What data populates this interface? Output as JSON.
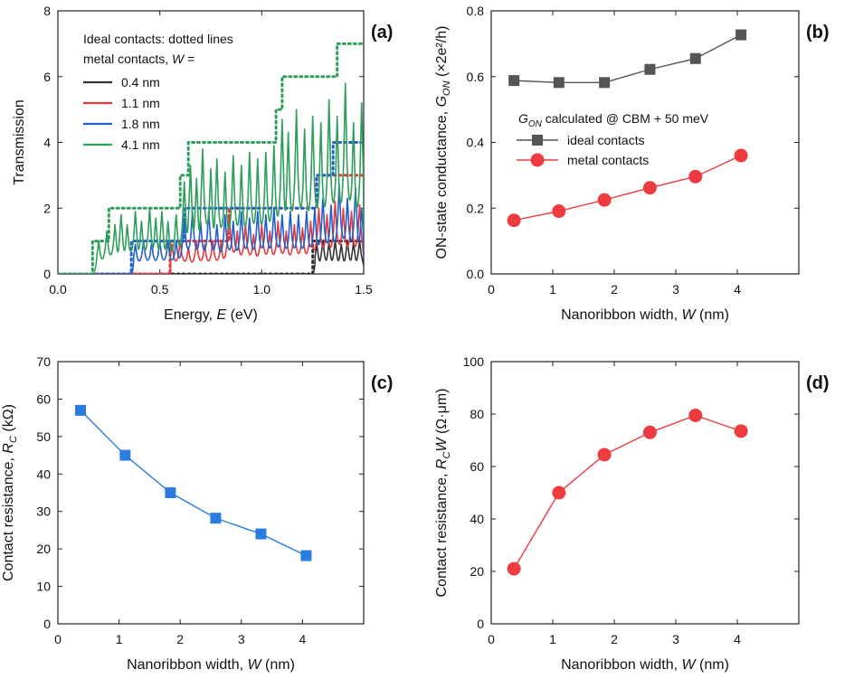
{
  "chart_data": [
    {
      "id": "a",
      "type": "line",
      "panel_label": "(a)",
      "xlabel": "Energy,",
      "xlabel_var": "E",
      "xlabel_unit": "(eV)",
      "ylabel": "Transmission",
      "xlim": [
        0.0,
        1.5
      ],
      "ylim": [
        0,
        8
      ],
      "xticks": [
        0.0,
        0.5,
        1.0,
        1.5
      ],
      "xtick_labels": [
        "0.0",
        "0.5",
        "1.0",
        "1.5"
      ],
      "yticks": [
        0,
        2,
        4,
        6,
        8
      ],
      "ytick_labels": [
        "0",
        "2",
        "4",
        "6",
        "8"
      ],
      "legend_title_1": "Ideal contacts: dotted lines",
      "legend_title_2": "metal contacts,",
      "legend_title_var": "W",
      "legend_title_eq": "=",
      "series": [
        {
          "name": "0.4 nm",
          "color": "#333333",
          "ideal_steps": [
            [
              1.25,
              1
            ]
          ],
          "peaks": [
            [
              1.27,
              0.9
            ],
            [
              1.3,
              1.0
            ],
            [
              1.33,
              0.95
            ],
            [
              1.36,
              1.0
            ],
            [
              1.39,
              0.9
            ],
            [
              1.42,
              1.0
            ],
            [
              1.45,
              0.95
            ],
            [
              1.48,
              1.0
            ]
          ]
        },
        {
          "name": "1.1 nm",
          "color": "#e8383d",
          "ideal_steps": [
            [
              0.55,
              1
            ],
            [
              0.84,
              2
            ],
            [
              1.27,
              3
            ]
          ],
          "peaks": [
            [
              0.56,
              0.9
            ],
            [
              0.6,
              1.0
            ],
            [
              0.64,
              0.8
            ],
            [
              0.68,
              1.0
            ],
            [
              0.72,
              0.9
            ],
            [
              0.76,
              1.0
            ],
            [
              0.8,
              0.95
            ],
            [
              0.84,
              1.8
            ],
            [
              0.88,
              1.3
            ],
            [
              0.92,
              1.5
            ],
            [
              0.96,
              1.2
            ],
            [
              1.0,
              1.5
            ],
            [
              1.04,
              1.3
            ],
            [
              1.08,
              1.6
            ],
            [
              1.12,
              1.3
            ],
            [
              1.16,
              1.5
            ],
            [
              1.2,
              1.4
            ],
            [
              1.24,
              1.6
            ],
            [
              1.28,
              2.0
            ],
            [
              1.32,
              1.8
            ],
            [
              1.36,
              2.2
            ],
            [
              1.4,
              2.0
            ],
            [
              1.44,
              1.9
            ],
            [
              1.48,
              2.1
            ]
          ]
        },
        {
          "name": "1.8 nm",
          "color": "#1f5fcf",
          "ideal_steps": [
            [
              0.36,
              1
            ],
            [
              0.62,
              2
            ],
            [
              1.27,
              3
            ],
            [
              1.35,
              4
            ]
          ],
          "peaks": [
            [
              0.38,
              0.9
            ],
            [
              0.42,
              1.0
            ],
            [
              0.46,
              0.95
            ],
            [
              0.5,
              1.0
            ],
            [
              0.54,
              1.0
            ],
            [
              0.58,
              1.0
            ],
            [
              0.62,
              1.7
            ],
            [
              0.66,
              1.9
            ],
            [
              0.7,
              1.6
            ],
            [
              0.74,
              1.9
            ],
            [
              0.78,
              1.5
            ],
            [
              0.82,
              1.8
            ],
            [
              0.86,
              1.6
            ],
            [
              0.9,
              1.9
            ],
            [
              0.94,
              1.7
            ],
            [
              0.98,
              1.9
            ],
            [
              1.02,
              1.8
            ],
            [
              1.06,
              2.0
            ],
            [
              1.1,
              1.8
            ],
            [
              1.14,
              1.9
            ],
            [
              1.18,
              1.8
            ],
            [
              1.22,
              1.9
            ],
            [
              1.26,
              2.0
            ],
            [
              1.3,
              2.3
            ],
            [
              1.34,
              2.1
            ],
            [
              1.38,
              2.7
            ],
            [
              1.42,
              2.3
            ],
            [
              1.46,
              2.6
            ],
            [
              1.49,
              2.0
            ]
          ]
        },
        {
          "name": "4.1 nm",
          "color": "#2e9e5b",
          "ideal_steps": [
            [
              0.17,
              1
            ],
            [
              0.25,
              2
            ],
            [
              0.6,
              3
            ],
            [
              0.64,
              4
            ],
            [
              1.07,
              5
            ],
            [
              1.1,
              6
            ],
            [
              1.37,
              7
            ]
          ],
          "peaks": [
            [
              0.2,
              1.0
            ],
            [
              0.24,
              1.3
            ],
            [
              0.28,
              1.5
            ],
            [
              0.31,
              1.8
            ],
            [
              0.34,
              1.5
            ],
            [
              0.38,
              1.9
            ],
            [
              0.41,
              1.6
            ],
            [
              0.45,
              2.0
            ],
            [
              0.48,
              1.7
            ],
            [
              0.51,
              1.9
            ],
            [
              0.54,
              1.6
            ],
            [
              0.58,
              1.8
            ],
            [
              0.62,
              2.8
            ],
            [
              0.65,
              3.3
            ],
            [
              0.68,
              2.9
            ],
            [
              0.71,
              3.8
            ],
            [
              0.75,
              3.2
            ],
            [
              0.78,
              3.5
            ],
            [
              0.82,
              3.1
            ],
            [
              0.86,
              3.6
            ],
            [
              0.9,
              3.3
            ],
            [
              0.94,
              3.7
            ],
            [
              0.98,
              3.5
            ],
            [
              1.02,
              3.7
            ],
            [
              1.06,
              3.9
            ],
            [
              1.1,
              4.7
            ],
            [
              1.13,
              4.3
            ],
            [
              1.17,
              5.0
            ],
            [
              1.21,
              4.4
            ],
            [
              1.25,
              4.8
            ],
            [
              1.29,
              4.6
            ],
            [
              1.33,
              5.3
            ],
            [
              1.37,
              4.8
            ],
            [
              1.41,
              5.8
            ],
            [
              1.45,
              4.6
            ],
            [
              1.49,
              5.2
            ]
          ]
        }
      ]
    },
    {
      "id": "b",
      "type": "line",
      "panel_label": "(b)",
      "xlabel": "Nanoribbon width,",
      "xlabel_var": "W",
      "xlabel_unit": "(nm)",
      "ylabel": "ON-state conductance,",
      "ylabel_var": "G",
      "ylabel_sub": "ON",
      "ylabel_unit": "(×2e²/h)",
      "xlim": [
        0,
        5
      ],
      "ylim": [
        0.0,
        0.8
      ],
      "xticks": [
        0,
        1,
        2,
        3,
        4
      ],
      "xtick_labels": [
        "0",
        "1",
        "2",
        "3",
        "4"
      ],
      "yticks": [
        0.0,
        0.2,
        0.4,
        0.6,
        0.8
      ],
      "ytick_labels": [
        "0.0",
        "0.2",
        "0.4",
        "0.6",
        "0.8"
      ],
      "annotation_var": "G",
      "annotation_sub": "ON",
      "annotation_rest": " calculated @ CBM + 50 meV",
      "series": [
        {
          "name": "ideal contacts",
          "color": "#555555",
          "marker": "square",
          "x": [
            0.37,
            1.1,
            1.84,
            2.58,
            3.32,
            4.06
          ],
          "values": [
            0.588,
            0.582,
            0.582,
            0.622,
            0.655,
            0.727
          ]
        },
        {
          "name": "metal contacts",
          "color": "#ee3b3f",
          "marker": "circle",
          "x": [
            0.37,
            1.1,
            1.84,
            2.58,
            3.32,
            4.06
          ],
          "values": [
            0.163,
            0.191,
            0.225,
            0.262,
            0.296,
            0.36
          ]
        }
      ]
    },
    {
      "id": "c",
      "type": "line",
      "panel_label": "(c)",
      "xlabel": "Nanoribbon width,",
      "xlabel_var": "W",
      "xlabel_unit": "(nm)",
      "ylabel": "Contact resistance,",
      "ylabel_var": "R",
      "ylabel_sub": "C",
      "ylabel_unit": "(kΩ)",
      "xlim": [
        0,
        5
      ],
      "ylim": [
        0,
        70
      ],
      "xticks": [
        0,
        1,
        2,
        3,
        4
      ],
      "xtick_labels": [
        "0",
        "1",
        "2",
        "3",
        "4"
      ],
      "yticks": [
        0,
        10,
        20,
        30,
        40,
        50,
        60,
        70
      ],
      "ytick_labels": [
        "0",
        "10",
        "20",
        "30",
        "40",
        "50",
        "60",
        "70"
      ],
      "series": [
        {
          "name": "Contact resistance",
          "color": "#2a7ce0",
          "marker": "square",
          "x": [
            0.37,
            1.1,
            1.84,
            2.58,
            3.32,
            4.06
          ],
          "values": [
            57,
            45,
            35,
            28.2,
            24,
            18.2
          ]
        }
      ]
    },
    {
      "id": "d",
      "type": "line",
      "panel_label": "(d)",
      "xlabel": "Nanoribbon width,",
      "xlabel_var": "W",
      "xlabel_unit": "(nm)",
      "ylabel": "Contact resistance,",
      "ylabel_var": "R",
      "ylabel_sub": "C",
      "ylabel_var2": "W",
      "ylabel_unit": "(Ω·μm)",
      "xlim": [
        0,
        5
      ],
      "ylim": [
        0,
        100
      ],
      "xticks": [
        0,
        1,
        2,
        3,
        4
      ],
      "xtick_labels": [
        "0",
        "1",
        "2",
        "3",
        "4"
      ],
      "yticks": [
        0,
        20,
        40,
        60,
        80,
        100
      ],
      "ytick_labels": [
        "0",
        "20",
        "40",
        "60",
        "80",
        "100"
      ],
      "series": [
        {
          "name": "Contact resistance × width",
          "color": "#ee3b3f",
          "marker": "circle",
          "x": [
            0.37,
            1.1,
            1.84,
            2.58,
            3.32,
            4.06
          ],
          "values": [
            21,
            50,
            64.5,
            73,
            79.5,
            73.5
          ]
        }
      ]
    }
  ]
}
